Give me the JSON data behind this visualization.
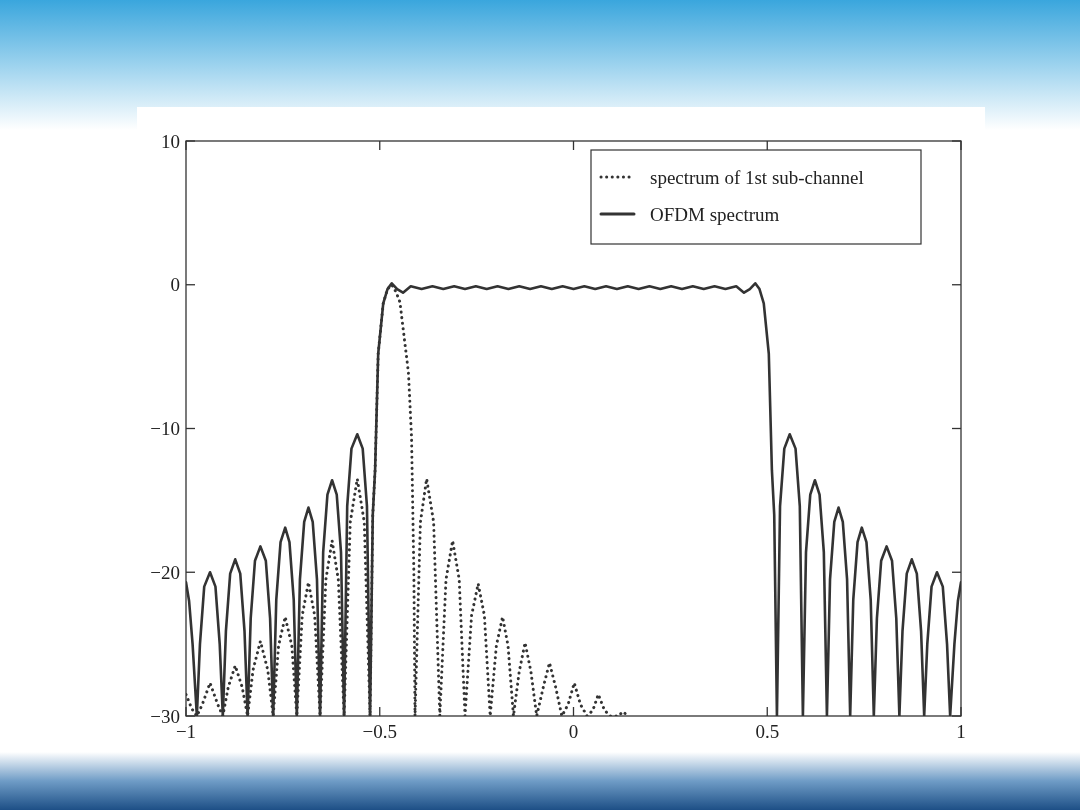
{
  "chart_data": {
    "type": "line",
    "xlim": [
      -1,
      1
    ],
    "ylim": [
      -30,
      10
    ],
    "xticks": [
      {
        "value": -1,
        "label": "−1"
      },
      {
        "value": -0.5,
        "label": "−0.5"
      },
      0,
      0.5,
      1
    ],
    "yticks": [
      {
        "value": -30,
        "label": "−30"
      },
      {
        "value": -20,
        "label": "−20"
      },
      {
        "value": -10,
        "label": "−10"
      },
      0,
      10
    ],
    "grid": false,
    "legend": "top right",
    "marker": "none",
    "series": [
      {
        "name": "spectrum of 1st sub-channel",
        "color": "#333333",
        "line_style": "dotted",
        "x": [
          -1,
          -0.985,
          -0.972,
          -0.958,
          -0.938,
          -0.918,
          -0.905,
          -0.891,
          -0.873,
          -0.855,
          -0.841,
          -0.827,
          -0.808,
          -0.789,
          -0.775,
          -0.761,
          -0.744,
          -0.727,
          -0.714,
          -0.7,
          -0.684,
          -0.668,
          -0.654,
          -0.639,
          -0.623,
          -0.607,
          -0.592,
          -0.576,
          -0.558,
          -0.54,
          -0.525,
          -0.518,
          -0.512,
          -0.504,
          -0.491,
          -0.48,
          -0.469,
          -0.458,
          -0.448,
          -0.426,
          -0.418,
          -0.412,
          -0.409,
          -0.395,
          -0.379,
          -0.361,
          -0.345,
          -0.329,
          -0.312,
          -0.295,
          -0.28,
          -0.263,
          -0.246,
          -0.23,
          -0.215,
          -0.199,
          -0.183,
          -0.169,
          -0.155,
          -0.14,
          -0.125,
          -0.11,
          -0.095,
          -0.078,
          -0.062,
          -0.046,
          -0.03,
          -0.014,
          0.002,
          0.018,
          0.035,
          0.05,
          0.064,
          0.08,
          0.095,
          0.115,
          0.128,
          0.14
        ],
        "values": [
          -28.5,
          -29.5,
          -30,
          -29.2,
          -27.7,
          -29.2,
          -30,
          -28,
          -26.5,
          -28,
          -30,
          -26.8,
          -24.8,
          -26.8,
          -30,
          -25.1,
          -23.1,
          -25.1,
          -30,
          -23,
          -20.7,
          -23,
          -30,
          -20.5,
          -17.8,
          -20.5,
          -30,
          -16.5,
          -13.5,
          -16.5,
          -30,
          -16,
          -12.9,
          -4.8,
          -1.3,
          -0.3,
          0,
          -0.5,
          -1.2,
          -6.1,
          -10.6,
          -20,
          -30,
          -16.5,
          -13.5,
          -16.5,
          -30,
          -20.5,
          -17.8,
          -20.5,
          -30,
          -23,
          -20.8,
          -23,
          -30,
          -25.1,
          -23.1,
          -25.1,
          -30,
          -26.9,
          -24.9,
          -26.9,
          -30,
          -28,
          -26.3,
          -28,
          -30,
          -29.2,
          -27.7,
          -29.2,
          -30,
          -29.6,
          -28.5,
          -29.6,
          -30,
          -30,
          -29.7,
          -30
        ]
      },
      {
        "name": "OFDM spectrum",
        "color": "#333333",
        "line_style": "solid",
        "x": [
          -1,
          -0.992,
          -0.983,
          -0.972,
          -0.964,
          -0.953,
          -0.938,
          -0.924,
          -0.913,
          -0.905,
          -0.897,
          -0.886,
          -0.873,
          -0.86,
          -0.849,
          -0.841,
          -0.833,
          -0.822,
          -0.808,
          -0.794,
          -0.783,
          -0.775,
          -0.767,
          -0.756,
          -0.744,
          -0.733,
          -0.722,
          -0.714,
          -0.706,
          -0.695,
          -0.684,
          -0.673,
          -0.662,
          -0.654,
          -0.646,
          -0.635,
          -0.623,
          -0.611,
          -0.6,
          -0.592,
          -0.584,
          -0.573,
          -0.558,
          -0.544,
          -0.533,
          -0.525,
          -0.518,
          -0.512,
          -0.504,
          -0.491,
          -0.48,
          -0.469,
          -0.455,
          -0.44,
          -0.42,
          -0.392,
          -0.364,
          -0.336,
          -0.308,
          -0.28,
          -0.252,
          -0.224,
          -0.196,
          -0.168,
          -0.14,
          -0.112,
          -0.084,
          -0.056,
          -0.028,
          0,
          0.028,
          0.056,
          0.084,
          0.112,
          0.14,
          0.168,
          0.196,
          0.224,
          0.252,
          0.28,
          0.308,
          0.336,
          0.364,
          0.392,
          0.42,
          0.44,
          0.455,
          0.469,
          0.48,
          0.491,
          0.504,
          0.512,
          0.518,
          0.525,
          0.533,
          0.544,
          0.558,
          0.573,
          0.584,
          0.592,
          0.6,
          0.611,
          0.623,
          0.635,
          0.646,
          0.654,
          0.662,
          0.673,
          0.684,
          0.695,
          0.706,
          0.714,
          0.722,
          0.733,
          0.744,
          0.756,
          0.767,
          0.775,
          0.783,
          0.794,
          0.808,
          0.822,
          0.833,
          0.841,
          0.849,
          0.86,
          0.873,
          0.886,
          0.897,
          0.905,
          0.913,
          0.924,
          0.938,
          0.953,
          0.964,
          0.972,
          0.983,
          0.992,
          1
        ],
        "values": [
          -20.7,
          -22,
          -25,
          -30,
          -25,
          -21,
          -20,
          -21,
          -25,
          -30,
          -24.1,
          -20.1,
          -19.1,
          -20.1,
          -24.1,
          -30,
          -23.2,
          -19.2,
          -18.2,
          -19.2,
          -23.2,
          -30,
          -21.9,
          -17.9,
          -16.9,
          -17.9,
          -21.9,
          -30,
          -20.5,
          -16.5,
          -15.5,
          -16.5,
          -20.5,
          -30,
          -18.6,
          -14.6,
          -13.6,
          -14.6,
          -18.6,
          -30,
          -15.4,
          -11.4,
          -10.4,
          -11.4,
          -15.4,
          -30,
          -16,
          -12.9,
          -4.8,
          -1.3,
          -0.3,
          0.1,
          -0.3,
          -0.55,
          -0.1,
          -0.3,
          -0.1,
          -0.3,
          -0.1,
          -0.3,
          -0.1,
          -0.3,
          -0.1,
          -0.3,
          -0.1,
          -0.3,
          -0.1,
          -0.3,
          -0.1,
          -0.3,
          -0.1,
          -0.3,
          -0.1,
          -0.3,
          -0.1,
          -0.3,
          -0.1,
          -0.3,
          -0.1,
          -0.3,
          -0.1,
          -0.3,
          -0.1,
          -0.3,
          -0.1,
          -0.55,
          -0.3,
          0.1,
          -0.3,
          -1.3,
          -4.8,
          -12.9,
          -16,
          -30,
          -15.4,
          -11.4,
          -10.4,
          -11.4,
          -15.4,
          -30,
          -18.6,
          -14.6,
          -13.6,
          -14.6,
          -18.6,
          -30,
          -20.5,
          -16.5,
          -15.5,
          -16.5,
          -20.5,
          -30,
          -21.9,
          -17.9,
          -16.9,
          -17.9,
          -21.9,
          -30,
          -23.2,
          -19.2,
          -18.2,
          -19.2,
          -23.2,
          -30,
          -24.1,
          -20.1,
          -19.1,
          -20.1,
          -24.1,
          -30,
          -25,
          -21,
          -20,
          -21,
          -25,
          -30,
          -25,
          -22,
          -20.7
        ]
      }
    ]
  }
}
